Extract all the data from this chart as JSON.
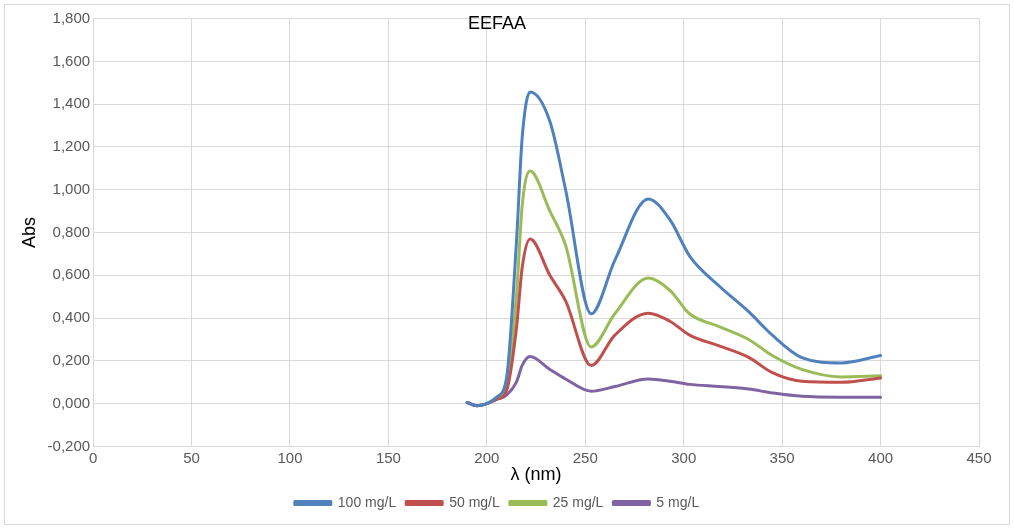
{
  "chart_data": {
    "type": "line",
    "title": "EEFAA",
    "xlabel": "λ (nm)",
    "ylabel": "Abs",
    "x": [
      190,
      195,
      200,
      205,
      210,
      215,
      218,
      222,
      232,
      240,
      253,
      265,
      282,
      293,
      303,
      318,
      333,
      345,
      360,
      380,
      400
    ],
    "series": [
      {
        "name": "100 mg/L",
        "color": "#4f81bd",
        "values": [
          0.005,
          -0.01,
          0.0,
          0.03,
          0.12,
          0.75,
          1.25,
          1.457,
          1.32,
          1.0,
          0.42,
          0.67,
          0.957,
          0.86,
          0.69,
          0.55,
          0.43,
          0.32,
          0.215,
          0.19,
          0.225
        ]
      },
      {
        "name": "50 mg/L",
        "color": "#c0504d",
        "values": [
          0.005,
          -0.01,
          0.0,
          0.02,
          0.06,
          0.35,
          0.64,
          0.77,
          0.6,
          0.48,
          0.178,
          0.32,
          0.423,
          0.385,
          0.32,
          0.27,
          0.216,
          0.145,
          0.105,
          0.1,
          0.12
        ]
      },
      {
        "name": "25 mg/L",
        "color": "#9bbb59",
        "values": [
          null,
          null,
          null,
          0.03,
          0.09,
          0.5,
          0.93,
          1.087,
          0.9,
          0.74,
          0.265,
          0.42,
          0.587,
          0.53,
          0.42,
          0.36,
          0.3,
          0.225,
          0.16,
          0.125,
          0.13
        ]
      },
      {
        "name": "5 mg/L",
        "color": "#8064a2",
        "values": [
          0.005,
          -0.01,
          0.0,
          0.02,
          0.04,
          0.1,
          0.18,
          0.22,
          0.16,
          0.115,
          0.058,
          0.08,
          0.115,
          0.105,
          0.09,
          0.08,
          0.068,
          0.05,
          0.034,
          0.03,
          0.03
        ]
      }
    ],
    "xlim": [
      0,
      450
    ],
    "xticks": [
      0,
      50,
      100,
      150,
      200,
      250,
      300,
      350,
      400,
      450
    ],
    "ylim": [
      -0.2,
      1.8
    ],
    "yticks": [
      {
        "value": -0.2,
        "label": "-0,200"
      },
      {
        "value": 0,
        "label": "0,000"
      },
      {
        "value": 0.2,
        "label": "0,200"
      },
      {
        "value": 0.4,
        "label": "0,400"
      },
      {
        "value": 0.6,
        "label": "0,600"
      },
      {
        "value": 0.8,
        "label": "0,800"
      },
      {
        "value": 1.0,
        "label": "1,000"
      },
      {
        "value": 1.2,
        "label": "1,200"
      },
      {
        "value": 1.4,
        "label": "1,400"
      },
      {
        "value": 1.6,
        "label": "1,600"
      },
      {
        "value": 1.8,
        "label": "1,800"
      }
    ],
    "grid": true,
    "legend": "bottom",
    "marker": "none",
    "line_style": "solid"
  }
}
